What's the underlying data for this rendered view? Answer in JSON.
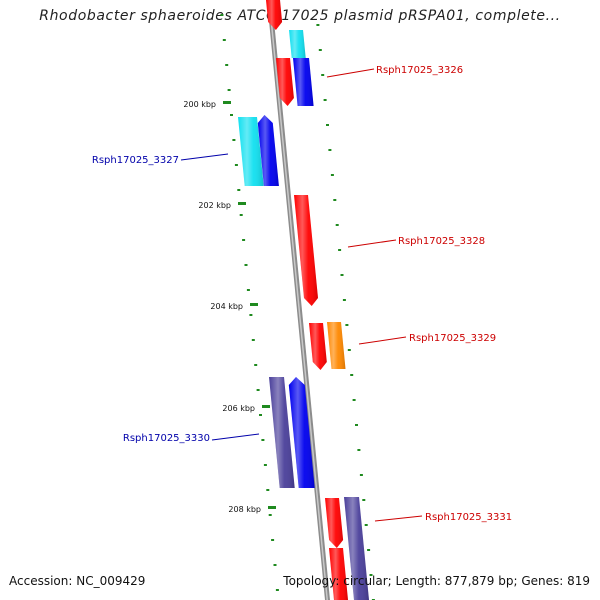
{
  "title": "Rhodobacter sphaeroides ATCC 17025 plasmid pRSPA01, complete...",
  "footer": {
    "accession": "Accession: NC_009429",
    "topology": "Topology: circular; Length: 877,879 bp; Genes: 819"
  },
  "colors": {
    "background": "#ffffff",
    "backbone": "#8c8c8c",
    "scale_dots": "#1f8a1f",
    "label_forward": "#cc0000",
    "label_reverse": "#0000aa",
    "gene_red": "#ff0000",
    "gene_blue": "#0000ee",
    "gene_cyan": "#11e0f0",
    "gene_orange": "#ff8800",
    "gene_slate": "#4a3f9a"
  },
  "scale_labels": [
    "200 kbp",
    "202 kbp",
    "204 kbp",
    "206 kbp",
    "208 kbp"
  ],
  "gene_labels": [
    {
      "id": "Rsph17025_3326",
      "strand": "forward"
    },
    {
      "id": "Rsph17025_3327",
      "strand": "reverse"
    },
    {
      "id": "Rsph17025_3328",
      "strand": "forward"
    },
    {
      "id": "Rsph17025_3329",
      "strand": "forward"
    },
    {
      "id": "Rsph17025_3330",
      "strand": "reverse"
    },
    {
      "id": "Rsph17025_3331",
      "strand": "forward"
    }
  ]
}
